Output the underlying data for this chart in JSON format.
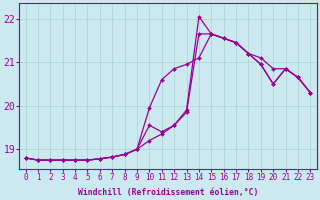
{
  "xlabel": "Windchill (Refroidissement éolien,°C)",
  "bg_color": "#cce8f0",
  "line_color": "#990099",
  "grid_color": "#aad4cc",
  "xlim": [
    -0.5,
    23.5
  ],
  "ylim": [
    18.55,
    22.35
  ],
  "yticks": [
    19,
    20,
    21,
    22
  ],
  "ytick_labels": [
    "19",
    "20",
    "21",
    "22"
  ],
  "xticks": [
    0,
    1,
    2,
    3,
    4,
    5,
    6,
    7,
    8,
    9,
    10,
    11,
    12,
    13,
    14,
    15,
    16,
    17,
    18,
    19,
    20,
    21,
    22,
    23
  ],
  "series": [
    [
      18.8,
      18.75,
      18.75,
      18.75,
      18.75,
      18.75,
      18.78,
      18.82,
      18.88,
      19.0,
      19.55,
      19.4,
      19.55,
      19.9,
      22.05,
      21.65,
      21.55,
      21.45,
      21.2,
      20.95,
      20.5,
      20.85,
      20.65,
      20.3
    ],
    [
      18.8,
      18.75,
      18.75,
      18.75,
      18.75,
      18.75,
      18.78,
      18.82,
      18.88,
      19.0,
      19.95,
      20.6,
      20.85,
      20.95,
      21.1,
      21.65,
      21.55,
      21.45,
      21.2,
      21.1,
      20.85,
      20.85,
      20.65,
      20.3
    ],
    [
      18.8,
      18.75,
      18.75,
      18.75,
      18.75,
      18.75,
      18.78,
      18.82,
      18.88,
      19.0,
      19.2,
      19.35,
      19.55,
      19.85,
      21.65,
      21.65,
      21.55,
      21.45,
      21.2,
      20.95,
      20.5,
      20.85,
      20.65,
      20.3
    ]
  ],
  "marker": "D",
  "markersize": 2.0,
  "linewidth": 0.9,
  "tick_fontsize": 5.5,
  "xlabel_fontsize": 5.8,
  "ylabel_fontsize": 7
}
